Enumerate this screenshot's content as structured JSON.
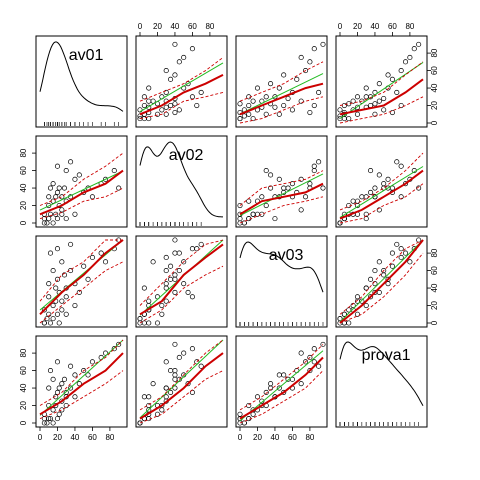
{
  "chart_data": {
    "type": "scatter",
    "subtype": "scatterplot-matrix",
    "variables": [
      "av01",
      "av02",
      "av03",
      "prova1"
    ],
    "axis_range": [
      0,
      95
    ],
    "ticks": [
      0,
      20,
      40,
      60,
      80
    ],
    "diagonal": "kernel density with rug",
    "lines": {
      "linear_fit_color": "#22bb22",
      "smooth_color": "#cc0000",
      "band_color": "#cc0000",
      "point_color": "#000000"
    },
    "observations": {
      "av01": [
        5,
        5,
        5,
        8,
        10,
        10,
        10,
        12,
        12,
        15,
        15,
        15,
        18,
        18,
        20,
        20,
        20,
        22,
        22,
        25,
        25,
        25,
        28,
        30,
        30,
        30,
        35,
        35,
        40,
        40,
        45,
        50,
        55,
        60,
        70,
        75,
        85,
        90
      ],
      "av02": [
        0,
        5,
        10,
        0,
        5,
        20,
        30,
        10,
        40,
        0,
        25,
        45,
        10,
        30,
        5,
        35,
        65,
        20,
        40,
        10,
        15,
        30,
        40,
        25,
        5,
        60,
        30,
        70,
        10,
        50,
        55,
        35,
        40,
        30,
        45,
        50,
        60,
        40
      ],
      "av03": [
        0,
        0,
        15,
        5,
        10,
        30,
        45,
        0,
        80,
        5,
        20,
        60,
        25,
        40,
        10,
        50,
        85,
        0,
        35,
        15,
        70,
        25,
        55,
        10,
        40,
        30,
        60,
        90,
        20,
        45,
        35,
        65,
        50,
        75,
        80,
        70,
        85,
        95
      ],
      "prova1": [
        0,
        5,
        10,
        0,
        5,
        20,
        40,
        5,
        60,
        0,
        15,
        50,
        20,
        30,
        5,
        35,
        70,
        10,
        40,
        15,
        45,
        25,
        50,
        20,
        30,
        35,
        40,
        65,
        30,
        55,
        45,
        60,
        55,
        70,
        75,
        80,
        85,
        90
      ]
    },
    "smooth_bands": {
      "av02|av01": {
        "x": [
          0,
          25,
          50,
          75,
          95
        ],
        "fit": [
          10,
          20,
          35,
          45,
          60
        ],
        "lo": [
          5,
          12,
          25,
          30,
          40
        ],
        "hi": [
          20,
          30,
          50,
          65,
          80
        ]
      },
      "av03|av01": {
        "x": [
          0,
          25,
          50,
          75,
          95
        ],
        "fit": [
          10,
          35,
          55,
          80,
          95
        ],
        "lo": [
          0,
          20,
          40,
          60,
          70
        ],
        "hi": [
          25,
          55,
          70,
          95,
          100
        ]
      },
      "prova1|av01": {
        "x": [
          0,
          25,
          50,
          75,
          95
        ],
        "fit": [
          10,
          25,
          45,
          60,
          80
        ],
        "lo": [
          5,
          15,
          30,
          45,
          60
        ],
        "hi": [
          20,
          35,
          60,
          75,
          95
        ]
      },
      "av01|av02": {
        "x": [
          0,
          25,
          50,
          75,
          95
        ],
        "fit": [
          10,
          20,
          35,
          45,
          55
        ],
        "lo": [
          5,
          10,
          25,
          30,
          35
        ],
        "hi": [
          25,
          35,
          45,
          60,
          75
        ]
      },
      "av03|av02": {
        "x": [
          0,
          25,
          50,
          75,
          95
        ],
        "fit": [
          10,
          25,
          55,
          75,
          90
        ],
        "lo": [
          0,
          15,
          40,
          55,
          65
        ],
        "hi": [
          20,
          45,
          70,
          90,
          100
        ]
      },
      "prova1|av02": {
        "x": [
          0,
          25,
          50,
          75,
          95
        ],
        "fit": [
          5,
          20,
          40,
          65,
          80
        ],
        "lo": [
          0,
          10,
          30,
          50,
          60
        ],
        "hi": [
          15,
          30,
          55,
          80,
          95
        ]
      },
      "av01|av03": {
        "x": [
          0,
          25,
          50,
          75,
          95
        ],
        "fit": [
          10,
          20,
          30,
          40,
          45
        ],
        "lo": [
          0,
          5,
          15,
          25,
          30
        ],
        "hi": [
          25,
          35,
          45,
          60,
          70
        ]
      },
      "av02|av03": {
        "x": [
          0,
          25,
          50,
          75,
          95
        ],
        "fit": [
          10,
          25,
          30,
          35,
          45
        ],
        "lo": [
          0,
          10,
          20,
          25,
          30
        ],
        "hi": [
          20,
          40,
          45,
          50,
          60
        ]
      },
      "prova1|av03": {
        "x": [
          0,
          25,
          50,
          75,
          95
        ],
        "fit": [
          5,
          20,
          35,
          55,
          75
        ],
        "lo": [
          0,
          10,
          25,
          40,
          60
        ],
        "hi": [
          15,
          30,
          50,
          70,
          90
        ]
      },
      "av01|prova1": {
        "x": [
          0,
          25,
          50,
          75,
          95
        ],
        "fit": [
          10,
          15,
          20,
          35,
          50
        ],
        "lo": [
          0,
          5,
          10,
          20,
          30
        ],
        "hi": [
          20,
          25,
          35,
          55,
          70
        ]
      },
      "av02|prova1": {
        "x": [
          0,
          25,
          50,
          75,
          95
        ],
        "fit": [
          5,
          15,
          30,
          45,
          60
        ],
        "lo": [
          0,
          5,
          20,
          30,
          45
        ],
        "hi": [
          15,
          25,
          40,
          60,
          80
        ]
      },
      "av03|prova1": {
        "x": [
          0,
          25,
          50,
          75,
          95
        ],
        "fit": [
          0,
          20,
          45,
          70,
          95
        ],
        "lo": [
          0,
          10,
          30,
          55,
          80
        ],
        "hi": [
          10,
          30,
          60,
          85,
          100
        ]
      }
    }
  }
}
